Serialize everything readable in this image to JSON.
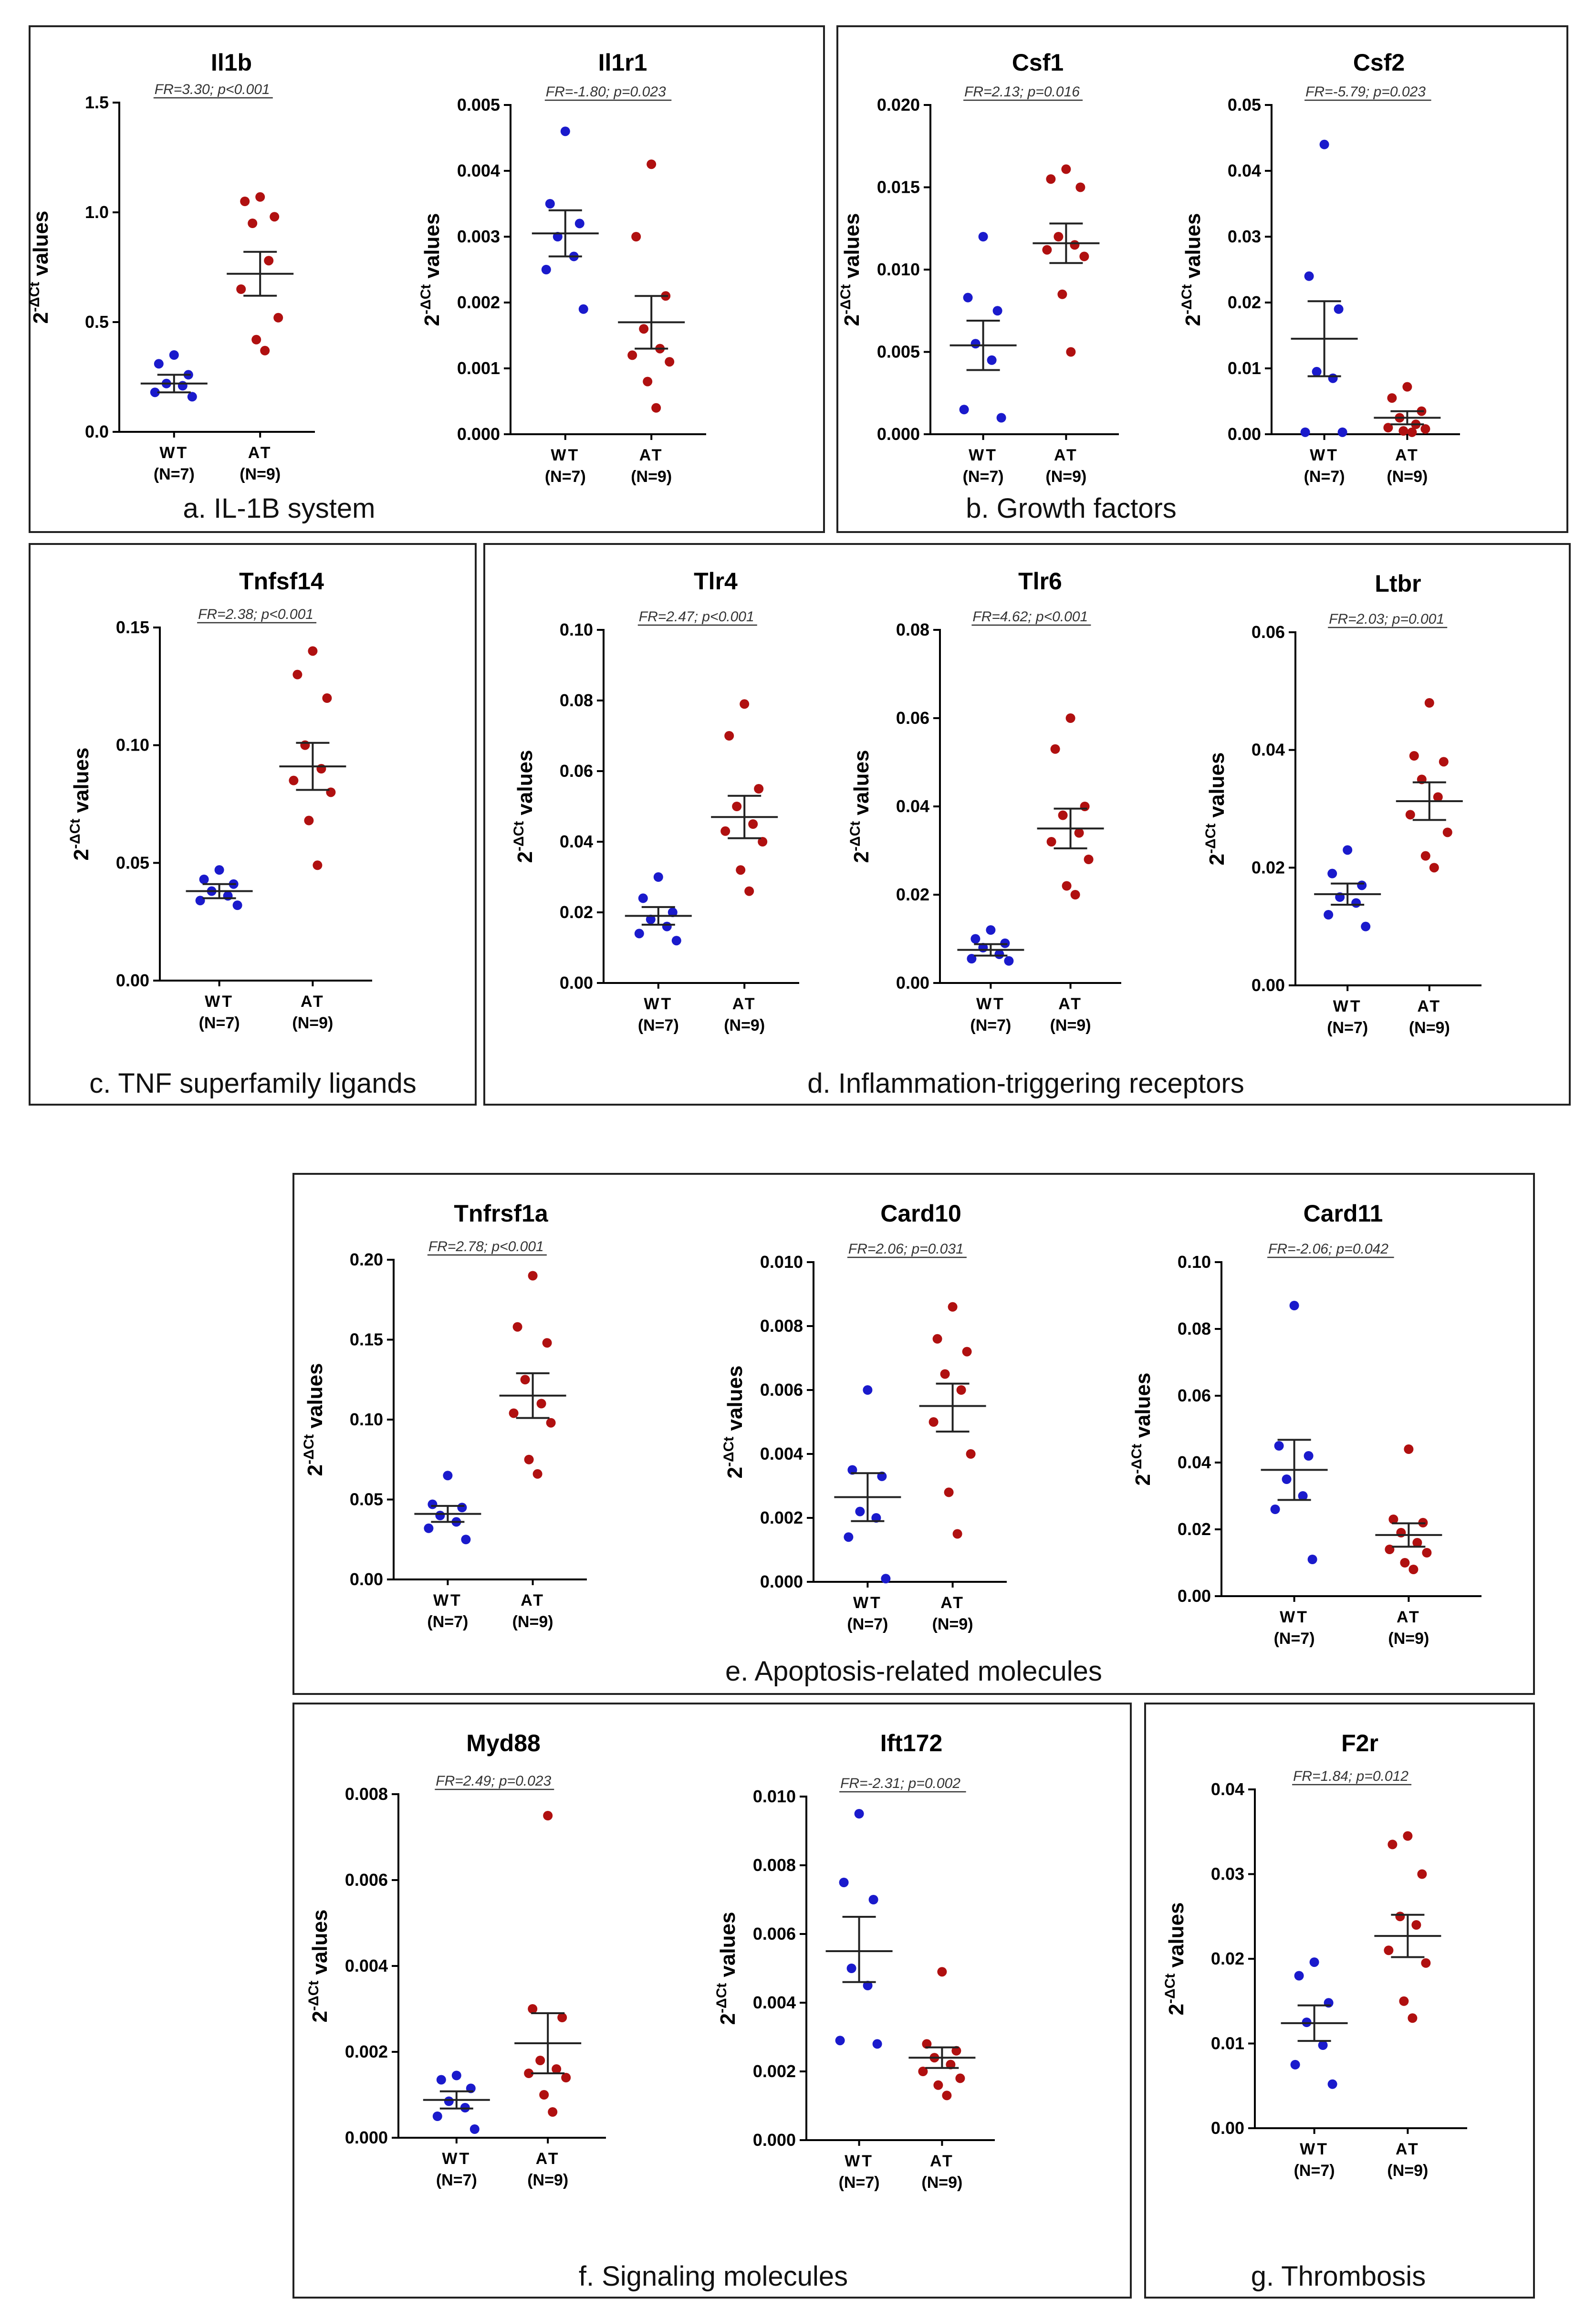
{
  "colors": {
    "wt": "#1a1acc",
    "at": "#b01010"
  },
  "panels": [
    {
      "id": "a",
      "label": "a. IL-1B system"
    },
    {
      "id": "b",
      "label": "b. Growth factors"
    },
    {
      "id": "c",
      "label": "c. TNF superfamily ligands"
    },
    {
      "id": "d",
      "label": "d. Inflammation-triggering receptors"
    },
    {
      "id": "e",
      "label": "e. Apoptosis-related molecules"
    },
    {
      "id": "f",
      "label": "f. Signaling molecules"
    },
    {
      "id": "g",
      "label": "g. Thrombosis"
    }
  ],
  "chart_data": [
    {
      "type": "scatter",
      "panel": "a",
      "title": "Il1b",
      "ylabel": "2^-ΔCt values",
      "stat": "FR=3.30; p<0.001",
      "ylim": [
        0,
        1.5
      ],
      "yticks": [
        "0.0",
        "0.5",
        "1.0",
        "1.5"
      ],
      "groups": [
        {
          "name": "WT",
          "n": "(N=7)",
          "mean": 0.22,
          "sem_low": 0.18,
          "sem_high": 0.26,
          "values": [
            0.35,
            0.31,
            0.26,
            0.22,
            0.21,
            0.18,
            0.16
          ]
        },
        {
          "name": "AT",
          "n": "(N=9)",
          "mean": 0.72,
          "sem_low": 0.62,
          "sem_high": 0.82,
          "values": [
            1.07,
            1.05,
            0.98,
            0.95,
            0.78,
            0.65,
            0.52,
            0.42,
            0.37
          ]
        }
      ]
    },
    {
      "type": "scatter",
      "panel": "a",
      "title": "Il1r1",
      "ylabel": "2^-ΔCt values",
      "stat": "FR=-1.80; p=0.023",
      "ylim": [
        0,
        0.005
      ],
      "yticks": [
        "0.000",
        "0.001",
        "0.002",
        "0.003",
        "0.004",
        "0.005"
      ],
      "groups": [
        {
          "name": "WT",
          "n": "(N=7)",
          "mean": 0.00305,
          "sem_low": 0.0027,
          "sem_high": 0.0034,
          "values": [
            0.0046,
            0.0035,
            0.0032,
            0.003,
            0.0027,
            0.0025,
            0.0019
          ]
        },
        {
          "name": "AT",
          "n": "(N=9)",
          "mean": 0.0017,
          "sem_low": 0.0013,
          "sem_high": 0.0021,
          "values": [
            0.0041,
            0.003,
            0.0021,
            0.0016,
            0.0013,
            0.0012,
            0.0011,
            0.0008,
            0.0004
          ]
        }
      ]
    },
    {
      "type": "scatter",
      "panel": "b",
      "title": "Csf1",
      "ylabel": "2^-ΔCt values",
      "stat": "FR=2.13; p=0.016",
      "ylim": [
        0,
        0.02
      ],
      "yticks": [
        "0.000",
        "0.005",
        "0.010",
        "0.015",
        "0.020"
      ],
      "groups": [
        {
          "name": "WT",
          "n": "(N=7)",
          "mean": 0.0054,
          "sem_low": 0.0039,
          "sem_high": 0.0069,
          "values": [
            0.012,
            0.0083,
            0.0075,
            0.0055,
            0.0045,
            0.0015,
            0.001
          ]
        },
        {
          "name": "AT",
          "n": "(N=9)",
          "mean": 0.0116,
          "sem_low": 0.0104,
          "sem_high": 0.0128,
          "values": [
            0.0161,
            0.0155,
            0.015,
            0.012,
            0.0115,
            0.0112,
            0.0108,
            0.0085,
            0.005
          ]
        }
      ]
    },
    {
      "type": "scatter",
      "panel": "b",
      "title": "Csf2",
      "ylabel": "2^-ΔCt values",
      "stat": "FR=-5.79; p=0.023",
      "ylim": [
        0,
        0.05
      ],
      "yticks": [
        "0.00",
        "0.01",
        "0.02",
        "0.03",
        "0.04",
        "0.05"
      ],
      "groups": [
        {
          "name": "WT",
          "n": "(N=7)",
          "mean": 0.0145,
          "sem_low": 0.0088,
          "sem_high": 0.0202,
          "values": [
            0.044,
            0.024,
            0.019,
            0.0095,
            0.0085,
            0.0003,
            0.0003
          ]
        },
        {
          "name": "AT",
          "n": "(N=9)",
          "mean": 0.0025,
          "sem_low": 0.0015,
          "sem_high": 0.0035,
          "values": [
            0.0072,
            0.0055,
            0.0035,
            0.0025,
            0.0015,
            0.001,
            0.0008,
            0.0005,
            0.0003
          ]
        }
      ]
    },
    {
      "type": "scatter",
      "panel": "c",
      "title": "Tnfsf14",
      "ylabel": "2^-ΔCt values",
      "stat": "FR=2.38; p<0.001",
      "ylim": [
        0,
        0.15
      ],
      "yticks": [
        "0.00",
        "0.05",
        "0.10",
        "0.15"
      ],
      "groups": [
        {
          "name": "WT",
          "n": "(N=7)",
          "mean": 0.038,
          "sem_low": 0.035,
          "sem_high": 0.041,
          "values": [
            0.047,
            0.043,
            0.041,
            0.038,
            0.036,
            0.034,
            0.032
          ]
        },
        {
          "name": "AT",
          "n": "(N=9)",
          "mean": 0.091,
          "sem_low": 0.081,
          "sem_high": 0.101,
          "values": [
            0.14,
            0.13,
            0.12,
            0.1,
            0.09,
            0.085,
            0.08,
            0.068,
            0.049
          ]
        }
      ]
    },
    {
      "type": "scatter",
      "panel": "d",
      "title": "Tlr4",
      "ylabel": "2^-ΔCt values",
      "stat": "FR=2.47; p<0.001",
      "ylim": [
        0,
        0.1
      ],
      "yticks": [
        "0.00",
        "0.02",
        "0.04",
        "0.06",
        "0.08",
        "0.10"
      ],
      "groups": [
        {
          "name": "WT",
          "n": "(N=7)",
          "mean": 0.019,
          "sem_low": 0.0165,
          "sem_high": 0.0215,
          "values": [
            0.03,
            0.024,
            0.02,
            0.018,
            0.016,
            0.014,
            0.012
          ]
        },
        {
          "name": "AT",
          "n": "(N=9)",
          "mean": 0.047,
          "sem_low": 0.041,
          "sem_high": 0.053,
          "values": [
            0.079,
            0.07,
            0.055,
            0.05,
            0.045,
            0.043,
            0.04,
            0.032,
            0.026
          ]
        }
      ]
    },
    {
      "type": "scatter",
      "panel": "d",
      "title": "Tlr6",
      "ylabel": "2^-ΔCt values",
      "stat": "FR=4.62; p<0.001",
      "ylim": [
        0,
        0.08
      ],
      "yticks": [
        "0.00",
        "0.02",
        "0.04",
        "0.06",
        "0.08"
      ],
      "groups": [
        {
          "name": "WT",
          "n": "(N=7)",
          "mean": 0.0075,
          "sem_low": 0.0062,
          "sem_high": 0.0088,
          "values": [
            0.012,
            0.01,
            0.009,
            0.008,
            0.0065,
            0.0055,
            0.005
          ]
        },
        {
          "name": "AT",
          "n": "(N=9)",
          "mean": 0.035,
          "sem_low": 0.0305,
          "sem_high": 0.0395,
          "values": [
            0.06,
            0.053,
            0.04,
            0.038,
            0.034,
            0.032,
            0.028,
            0.022,
            0.02
          ]
        }
      ]
    },
    {
      "type": "scatter",
      "panel": "d",
      "title": "Ltbr",
      "ylabel": "2^-ΔCt values",
      "stat": "FR=2.03; p=0.001",
      "ylim": [
        0,
        0.06
      ],
      "yticks": [
        "0.00",
        "0.02",
        "0.04",
        "0.06"
      ],
      "groups": [
        {
          "name": "WT",
          "n": "(N=7)",
          "mean": 0.0155,
          "sem_low": 0.0137,
          "sem_high": 0.0173,
          "values": [
            0.023,
            0.019,
            0.017,
            0.015,
            0.014,
            0.012,
            0.01
          ]
        },
        {
          "name": "AT",
          "n": "(N=9)",
          "mean": 0.0313,
          "sem_low": 0.0281,
          "sem_high": 0.0345,
          "values": [
            0.048,
            0.039,
            0.038,
            0.035,
            0.032,
            0.029,
            0.026,
            0.022,
            0.02
          ]
        }
      ]
    },
    {
      "type": "scatter",
      "panel": "e",
      "title": "Tnfrsf1a",
      "ylabel": "2^-ΔCt values",
      "stat": "FR=2.78; p<0.001",
      "ylim": [
        0,
        0.2
      ],
      "yticks": [
        "0.00",
        "0.05",
        "0.10",
        "0.15",
        "0.20"
      ],
      "groups": [
        {
          "name": "WT",
          "n": "(N=7)",
          "mean": 0.041,
          "sem_low": 0.036,
          "sem_high": 0.046,
          "values": [
            0.065,
            0.047,
            0.045,
            0.04,
            0.036,
            0.032,
            0.025
          ]
        },
        {
          "name": "AT",
          "n": "(N=9)",
          "mean": 0.115,
          "sem_low": 0.101,
          "sem_high": 0.129,
          "values": [
            0.19,
            0.158,
            0.148,
            0.125,
            0.11,
            0.104,
            0.098,
            0.075,
            0.066
          ]
        }
      ]
    },
    {
      "type": "scatter",
      "panel": "e",
      "title": "Card10",
      "ylabel": "2^-ΔCt values",
      "stat": "FR=2.06; p=0.031",
      "ylim": [
        0,
        0.01
      ],
      "yticks": [
        "0.000",
        "0.002",
        "0.004",
        "0.006",
        "0.008",
        "0.010"
      ],
      "groups": [
        {
          "name": "WT",
          "n": "(N=7)",
          "mean": 0.00265,
          "sem_low": 0.0019,
          "sem_high": 0.0034,
          "values": [
            0.006,
            0.0035,
            0.0033,
            0.0022,
            0.002,
            0.0014,
            0.0001
          ]
        },
        {
          "name": "AT",
          "n": "(N=9)",
          "mean": 0.0055,
          "sem_low": 0.0047,
          "sem_high": 0.0062,
          "values": [
            0.0086,
            0.0076,
            0.0072,
            0.0065,
            0.006,
            0.005,
            0.004,
            0.0028,
            0.0015
          ]
        }
      ]
    },
    {
      "type": "scatter",
      "panel": "e",
      "title": "Card11",
      "ylabel": "2^-ΔCt values",
      "stat": "FR=-2.06; p=0.042",
      "ylim": [
        0,
        0.1
      ],
      "yticks": [
        "0.00",
        "0.02",
        "0.04",
        "0.06",
        "0.08",
        "0.10"
      ],
      "groups": [
        {
          "name": "WT",
          "n": "(N=7)",
          "mean": 0.0378,
          "sem_low": 0.0288,
          "sem_high": 0.0468,
          "values": [
            0.087,
            0.045,
            0.042,
            0.035,
            0.03,
            0.026,
            0.011
          ]
        },
        {
          "name": "AT",
          "n": "(N=9)",
          "mean": 0.0183,
          "sem_low": 0.0148,
          "sem_high": 0.0218,
          "values": [
            0.044,
            0.023,
            0.022,
            0.019,
            0.016,
            0.014,
            0.013,
            0.01,
            0.008
          ]
        }
      ]
    },
    {
      "type": "scatter",
      "panel": "f",
      "title": "Myd88",
      "ylabel": "2^-ΔCt values",
      "stat": "FR=2.49; p=0.023",
      "ylim": [
        0,
        0.008
      ],
      "yticks": [
        "0.000",
        "0.002",
        "0.004",
        "0.006",
        "0.008"
      ],
      "groups": [
        {
          "name": "WT",
          "n": "(N=7)",
          "mean": 0.00088,
          "sem_low": 0.00068,
          "sem_high": 0.00108,
          "values": [
            0.00145,
            0.00135,
            0.00115,
            0.00085,
            0.0007,
            0.0005,
            0.0002
          ]
        },
        {
          "name": "AT",
          "n": "(N=9)",
          "mean": 0.0022,
          "sem_low": 0.0015,
          "sem_high": 0.0029,
          "values": [
            0.0075,
            0.003,
            0.0028,
            0.0018,
            0.0016,
            0.0015,
            0.0014,
            0.001,
            0.0006
          ]
        }
      ]
    },
    {
      "type": "scatter",
      "panel": "f",
      "title": "Ift172",
      "ylabel": "2^-ΔCt values",
      "stat": "FR=-2.31; p=0.002",
      "ylim": [
        0,
        0.01
      ],
      "yticks": [
        "0.000",
        "0.002",
        "0.004",
        "0.006",
        "0.008",
        "0.010"
      ],
      "groups": [
        {
          "name": "WT",
          "n": "(N=7)",
          "mean": 0.0055,
          "sem_low": 0.0046,
          "sem_high": 0.0065,
          "values": [
            0.0095,
            0.0075,
            0.007,
            0.005,
            0.0045,
            0.0029,
            0.0028
          ]
        },
        {
          "name": "AT",
          "n": "(N=9)",
          "mean": 0.0024,
          "sem_low": 0.0021,
          "sem_high": 0.0027,
          "values": [
            0.0049,
            0.0028,
            0.0026,
            0.0024,
            0.0022,
            0.002,
            0.0018,
            0.0016,
            0.0013
          ]
        }
      ]
    },
    {
      "type": "scatter",
      "panel": "g",
      "title": "F2r",
      "ylabel": "2^-ΔCt values",
      "stat": "FR=1.84; p=0.012",
      "ylim": [
        0,
        0.04
      ],
      "yticks": [
        "0.00",
        "0.01",
        "0.02",
        "0.03",
        "0.04"
      ],
      "groups": [
        {
          "name": "WT",
          "n": "(N=7)",
          "mean": 0.0124,
          "sem_low": 0.0103,
          "sem_high": 0.0145,
          "values": [
            0.0196,
            0.018,
            0.0148,
            0.0125,
            0.0098,
            0.0075,
            0.0052
          ]
        },
        {
          "name": "AT",
          "n": "(N=9)",
          "mean": 0.0227,
          "sem_low": 0.0202,
          "sem_high": 0.0252,
          "values": [
            0.0345,
            0.0335,
            0.03,
            0.025,
            0.024,
            0.021,
            0.0195,
            0.015,
            0.013
          ]
        }
      ]
    }
  ]
}
